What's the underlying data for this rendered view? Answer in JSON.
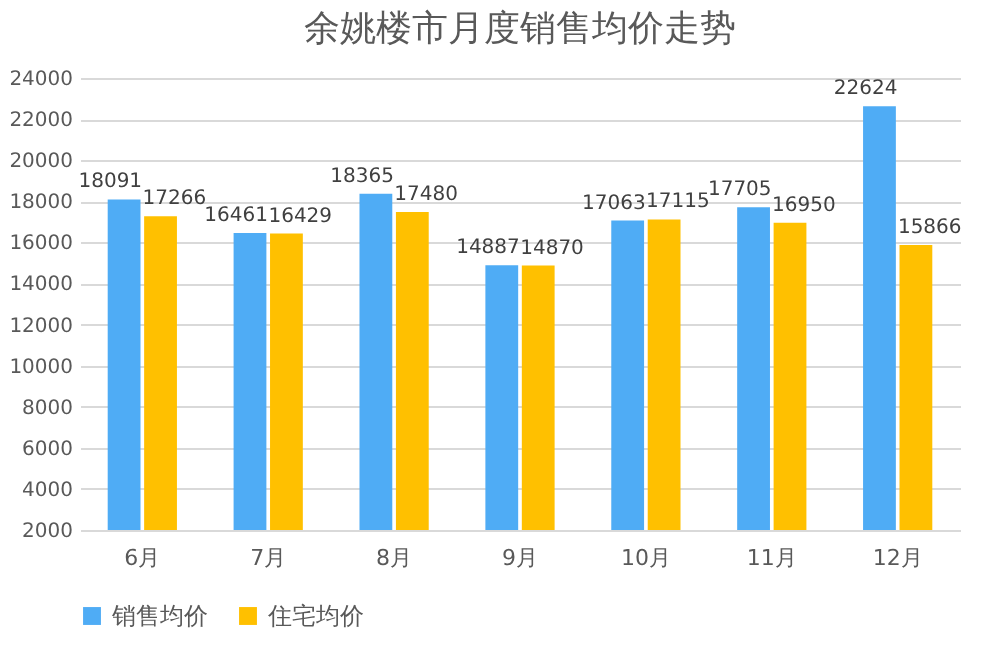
{
  "chart_data": {
    "type": "bar",
    "title": "余姚楼市月度销售均价走势",
    "categories": [
      "6月",
      "7月",
      "8月",
      "9月",
      "10月",
      "11月",
      "12月"
    ],
    "series": [
      {
        "name": "销售均价",
        "color": "#4facf5",
        "values": [
          18091,
          16461,
          18365,
          14887,
          17063,
          17705,
          22624
        ]
      },
      {
        "name": "住宅均价",
        "color": "#ffc000",
        "values": [
          17266,
          16429,
          17480,
          14870,
          17115,
          16950,
          15866
        ]
      }
    ],
    "ylim": [
      2000,
      24000
    ],
    "yticks": [
      2000,
      4000,
      6000,
      8000,
      10000,
      12000,
      14000,
      16000,
      18000,
      20000,
      22000,
      24000
    ],
    "grid": "y",
    "legend": "bottom",
    "data_labels": true
  }
}
